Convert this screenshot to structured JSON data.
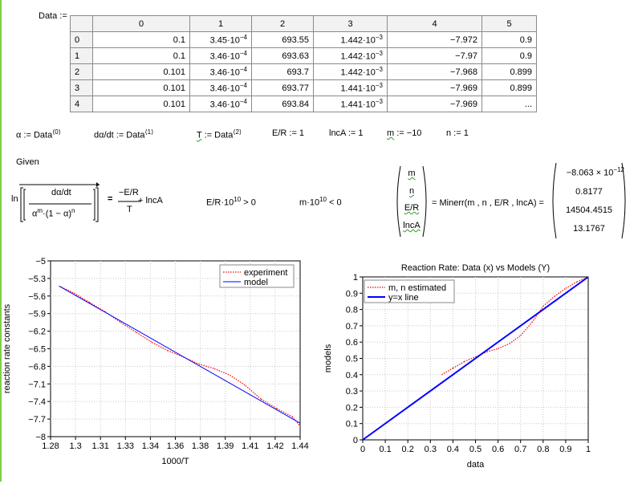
{
  "data_label": "Data :=",
  "table": {
    "col_headers": [
      "0",
      "1",
      "2",
      "3",
      "4",
      "5"
    ],
    "rows": [
      {
        "idx": "0",
        "c0": "0.1",
        "c1_base": "3.45·10",
        "c1_exp": "−4",
        "c2": "693.55",
        "c3_base": "1.442·10",
        "c3_exp": "−3",
        "c4": "−7.972",
        "c5": "0.9"
      },
      {
        "idx": "1",
        "c0": "0.1",
        "c1_base": "3.46·10",
        "c1_exp": "−4",
        "c2": "693.63",
        "c3_base": "1.442·10",
        "c3_exp": "−3",
        "c4": "−7.97",
        "c5": "0.9"
      },
      {
        "idx": "2",
        "c0": "0.101",
        "c1_base": "3.46·10",
        "c1_exp": "−4",
        "c2": "693.7",
        "c3_base": "1.442·10",
        "c3_exp": "−3",
        "c4": "−7.968",
        "c5": "0.899"
      },
      {
        "idx": "3",
        "c0": "0.101",
        "c1_base": "3.46·10",
        "c1_exp": "−4",
        "c2": "693.77",
        "c3_base": "1.441·10",
        "c3_exp": "−3",
        "c4": "−7.969",
        "c5": "0.899"
      },
      {
        "idx": "4",
        "c0": "0.101",
        "c1_base": "3.46·10",
        "c1_exp": "−4",
        "c2": "693.84",
        "c3_base": "1.441·10",
        "c3_exp": "−3",
        "c4": "−7.969",
        "c5": "..."
      }
    ]
  },
  "defs": {
    "alpha": "α := Data",
    "alpha_sup": "⟨0⟩",
    "dadt": "dα/dt := Data",
    "dadt_sup": "⟨1⟩",
    "T_name": "T",
    "T_rest": " := Data",
    "T_sup": "⟨2⟩",
    "ER": "E/R := 1",
    "lncA": "lncA := 1",
    "m_name": "m",
    "m_rest": " := −10",
    "n": "n := 1"
  },
  "given": "Given",
  "eq1": {
    "ln": "ln",
    "num": "dα/dt",
    "den_a": "α",
    "den_m": "m",
    "den_mid": "·(1 − α)",
    "den_n": "n",
    "eq": "=",
    "rhs_num": "−E/R",
    "rhs_den": "T",
    "rhs_plus": "+ lncA"
  },
  "constraint1": {
    "base": "E/R·10",
    "exp": "10",
    "rest": " > 0"
  },
  "constraint2": {
    "base": "m·10",
    "exp": "10",
    "rest": " < 0"
  },
  "vector": [
    "m",
    "n",
    "E/R",
    "lncA"
  ],
  "minerr": "= Minerr(m , n , E/R , lncA) =",
  "results": {
    "r0_base": "−8.063 × 10",
    "r0_exp": "−12",
    "r1": "0.8177",
    "r2": "14504.4515",
    "r3": "13.1767"
  },
  "plot1": {
    "legend": [
      "experiment",
      "model"
    ],
    "xlabel": "1000/T",
    "ylabel": "reaction rate constants"
  },
  "plot2": {
    "title": "Reaction Rate: Data (x) vs Models (Y)",
    "legend": [
      "m, n estimated",
      "y=x line"
    ],
    "xlabel": "data",
    "ylabel": "models"
  },
  "colors": {
    "experiment": "#ff0000",
    "model": "#0000ff",
    "squiggle": "#2a9d2a"
  },
  "chart_data": [
    {
      "type": "line",
      "title": "",
      "xlabel": "1000/T",
      "ylabel": "reaction rate constants",
      "xlim": [
        1.28,
        1.44
      ],
      "ylim": [
        -8,
        -5
      ],
      "x_ticks": [
        "1.28",
        "1.3",
        "1.31",
        "1.33",
        "1.34",
        "1.36",
        "1.38",
        "1.39",
        "1.41",
        "1.42",
        "1.44"
      ],
      "y_ticks": [
        "−5",
        "−5.3",
        "−5.6",
        "−5.9",
        "−6.2",
        "−6.5",
        "−6.8",
        "−7.1",
        "−7.4",
        "−7.7",
        "−8"
      ],
      "legend_position": "top-right",
      "grid": true,
      "series": [
        {
          "name": "experiment",
          "style": "dotted",
          "color": "#ff0000",
          "x": [
            1.2855,
            1.295,
            1.305,
            1.315,
            1.325,
            1.335,
            1.345,
            1.355,
            1.365,
            1.375,
            1.385,
            1.395,
            1.405,
            1.415,
            1.425,
            1.435,
            1.44
          ],
          "y": [
            -5.43,
            -5.55,
            -5.71,
            -5.87,
            -6.05,
            -6.22,
            -6.39,
            -6.53,
            -6.64,
            -6.76,
            -6.84,
            -6.95,
            -7.13,
            -7.36,
            -7.52,
            -7.66,
            -7.82
          ]
        },
        {
          "name": "model",
          "style": "solid",
          "color": "#0000ff",
          "x": [
            1.2855,
            1.44
          ],
          "y": [
            -5.43,
            -7.77
          ]
        }
      ]
    },
    {
      "type": "scatter",
      "title": "Reaction Rate: Data (x) vs Models (Y)",
      "xlabel": "data",
      "ylabel": "models",
      "xlim": [
        0,
        1
      ],
      "ylim": [
        0,
        1
      ],
      "x_ticks": [
        "0",
        "0.1",
        "0.2",
        "0.3",
        "0.4",
        "0.5",
        "0.6",
        "0.7",
        "0.8",
        "0.9",
        "1"
      ],
      "y_ticks": [
        "0",
        "0.1",
        "0.2",
        "0.3",
        "0.4",
        "0.5",
        "0.6",
        "0.7",
        "0.8",
        "0.9",
        "1"
      ],
      "legend_position": "top-left",
      "grid": true,
      "series": [
        {
          "name": "m, n estimated",
          "style": "dotted",
          "color": "#ff0000",
          "x": [
            0.35,
            0.4,
            0.45,
            0.5,
            0.55,
            0.6,
            0.65,
            0.7,
            0.75,
            0.8,
            0.85,
            0.9,
            0.95,
            1.0
          ],
          "y": [
            0.4,
            0.44,
            0.48,
            0.51,
            0.54,
            0.56,
            0.59,
            0.64,
            0.72,
            0.82,
            0.88,
            0.93,
            0.97,
            1.0
          ]
        },
        {
          "name": "y=x line",
          "style": "solid",
          "color": "#0000ff",
          "x": [
            0,
            1
          ],
          "y": [
            0,
            1
          ]
        }
      ]
    }
  ]
}
